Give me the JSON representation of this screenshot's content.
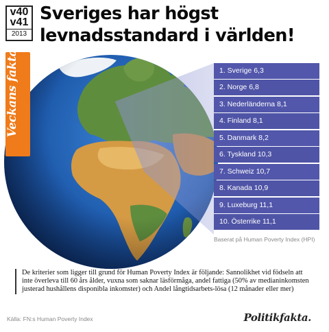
{
  "badge": {
    "week1": "v40",
    "week2": "v41",
    "year": "2013"
  },
  "headline": {
    "line1": "Sveriges har högst",
    "line2": "levnadsstandard i världen!"
  },
  "tag": "Veckans fakta",
  "ranking": [
    "1. Sverige 6,3",
    "2. Norge 6,8",
    "3. Nederländerna 8,1",
    "4. Finland 8,1",
    "5. Danmark 8,2",
    "6. Tyskland 10,3",
    "7. Schweiz 10,7",
    "8. Kanada 10,9",
    "9. Luxeburg 11,1",
    "10. Österrike 11,1"
  ],
  "note": "Baserat på Human Poverty Index (HPI)",
  "description": "De kriterier som ligger till grund för Human Poverty Index är följande: Sannolikhet vid födseln att inte överleva till 60 års ålder, vuxna som saknar läsförmåga, andel fattiga (50% av medianinkomsten justerad hushållens disponibla inkomster) och Andel långtidsarbets-lösa (12 månader eller mer)",
  "source": "Källa: FN:s Human Poverty Index",
  "brand": "Politikfakta.",
  "colors": {
    "accent": "#ef7b1a",
    "list": "#4f54a6",
    "ocean": "#1e5aa8"
  }
}
